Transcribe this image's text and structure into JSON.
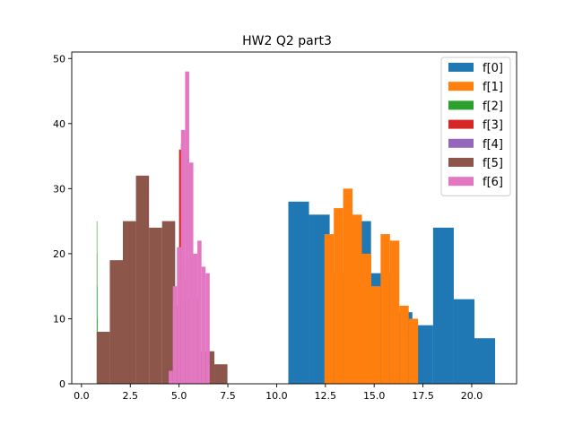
{
  "chart_data": {
    "type": "histogram",
    "title": "HW2 Q2 part3",
    "xlabel": "",
    "ylabel": "",
    "xlim": [
      -0.5,
      22.3
    ],
    "ylim": [
      0,
      51
    ],
    "xticks": [
      0.0,
      2.5,
      5.0,
      7.5,
      10.0,
      12.5,
      15.0,
      17.5,
      20.0
    ],
    "xtick_labels": [
      "0.0",
      "2.5",
      "5.0",
      "7.5",
      "10.0",
      "12.5",
      "15.0",
      "17.5",
      "20.0"
    ],
    "yticks": [
      0,
      10,
      20,
      30,
      40,
      50
    ],
    "ytick_labels": [
      "0",
      "10",
      "20",
      "30",
      "40",
      "50"
    ],
    "grid": false,
    "legend_position": "upper right",
    "series": [
      {
        "name": "f[0]",
        "color": "#1f77b4",
        "edges": [
          10.6,
          11.66,
          12.72,
          13.78,
          14.84,
          15.9,
          16.96,
          18.02,
          19.08,
          20.14,
          21.2
        ],
        "counts": [
          28,
          26,
          17,
          25,
          17,
          11,
          9,
          24,
          13,
          7
        ]
      },
      {
        "name": "f[1]",
        "color": "#ff7f0e",
        "edges": [
          12.45,
          12.93,
          13.41,
          13.89,
          14.37,
          14.85,
          15.33,
          15.81,
          16.29,
          16.77,
          17.25
        ],
        "counts": [
          23,
          27,
          30,
          26,
          20,
          15,
          23,
          22,
          12,
          10
        ]
      },
      {
        "name": "f[2]",
        "color": "#2ca02c",
        "edges": [
          0.78,
          0.785,
          0.79,
          0.795,
          0.8,
          0.805,
          0.81,
          0.815,
          0.82,
          0.825,
          0.83
        ],
        "counts": [
          25,
          20,
          15,
          10,
          8,
          8,
          6,
          4,
          3,
          1
        ]
      },
      {
        "name": "f[3]",
        "color": "#d62728",
        "edges": [
          5.0,
          5.1,
          5.2,
          5.3,
          5.4,
          5.5,
          5.6,
          5.7,
          5.8,
          5.9,
          6.0
        ],
        "counts": [
          36,
          37,
          19,
          16,
          13,
          12,
          10,
          8,
          6,
          5
        ]
      },
      {
        "name": "f[4]",
        "color": "#9467bd",
        "edges": [
          5.6,
          5.62,
          5.64,
          5.66,
          5.68,
          5.7,
          5.72,
          5.74,
          5.76,
          5.78,
          5.8
        ],
        "counts": [
          2,
          3,
          4,
          5,
          4,
          3,
          2,
          2,
          1,
          1
        ]
      },
      {
        "name": "f[5]",
        "color": "#8c564b",
        "edges": [
          0.78,
          1.45,
          2.12,
          2.79,
          3.46,
          4.13,
          4.8,
          5.47,
          6.14,
          6.81,
          7.48
        ],
        "counts": [
          8,
          19,
          25,
          32,
          24,
          25,
          12,
          13,
          5,
          3
        ]
      },
      {
        "name": "f[6]",
        "color": "#e377c2",
        "edges": [
          4.47,
          4.68,
          4.89,
          5.1,
          5.31,
          5.52,
          5.73,
          5.94,
          6.15,
          6.36,
          6.57
        ],
        "counts": [
          2,
          15,
          21,
          39,
          48,
          34,
          20,
          22,
          18,
          17
        ]
      }
    ]
  }
}
